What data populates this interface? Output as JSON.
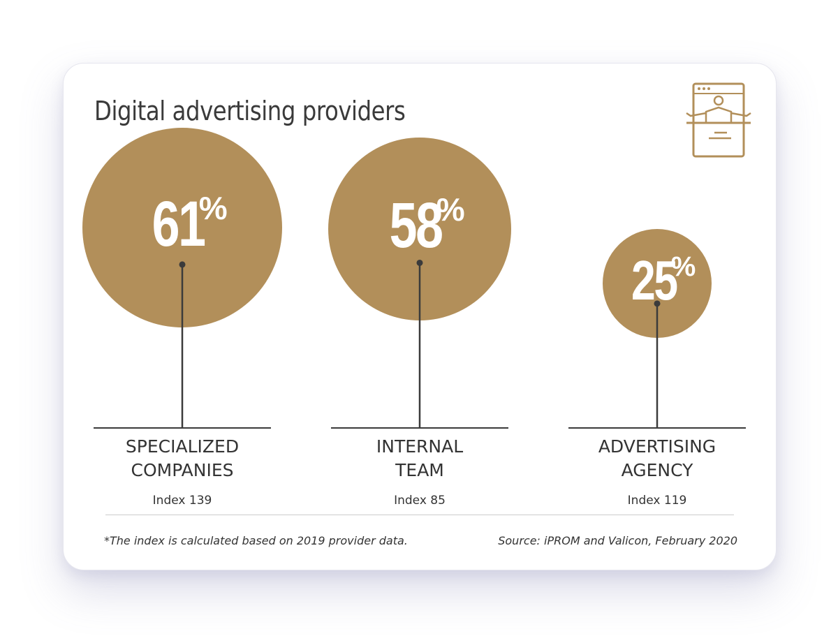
{
  "card": {
    "title": "Digital advertising providers",
    "footnote": "*The index is calculated based on 2019 provider data.",
    "source": "Source: iPROM and Valicon, February 2020"
  },
  "icon": {
    "name": "presenter-screen-icon",
    "color": "#b28f5a"
  },
  "colors": {
    "circle": "#b28f5a",
    "text": "#333333",
    "line": "#3b3b3b"
  },
  "chart_data": {
    "type": "bubble",
    "title": "Digital advertising providers",
    "unit": "%",
    "categories": [
      "SPECIALIZED COMPANIES",
      "INTERNAL TEAM",
      "ADVERTISING AGENCY"
    ],
    "values": [
      61,
      58,
      25
    ],
    "value_labels": [
      "61",
      "58",
      "25"
    ],
    "percent_sign": "%",
    "category_lines": [
      [
        "SPECIALIZED",
        "COMPANIES"
      ],
      [
        "INTERNAL",
        "TEAM"
      ],
      [
        "ADVERTISING",
        "AGENCY"
      ]
    ],
    "index_labels": [
      "Index 139",
      "Index 85",
      "Index 119"
    ],
    "index_values": [
      139,
      85,
      119
    ]
  }
}
